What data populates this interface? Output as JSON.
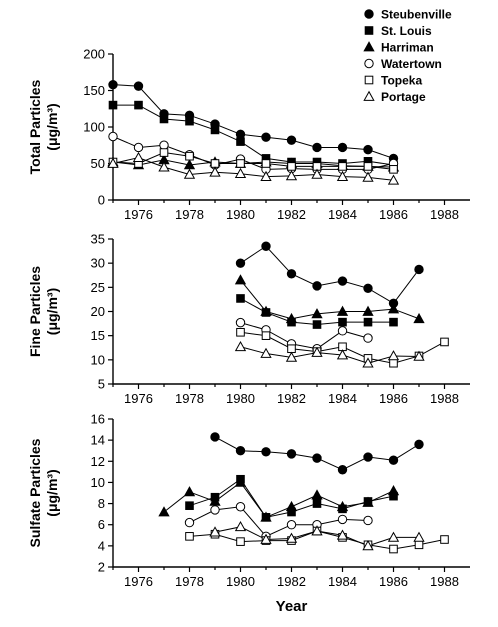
{
  "chart_data": [
    {
      "type": "line",
      "ylabel_lines": [
        "Total Particles",
        "(μg/m³)"
      ],
      "xlim": [
        1975,
        1989
      ],
      "ylim": [
        0,
        200
      ],
      "yticks": [
        0,
        50,
        100,
        150,
        200
      ],
      "xticks": [
        1976,
        1978,
        1980,
        1982,
        1984,
        1986,
        1988
      ],
      "series": [
        {
          "name": "Steubenville",
          "marker": "circle-filled",
          "x": [
            1975,
            1976,
            1977,
            1978,
            1979,
            1980,
            1981,
            1982,
            1983,
            1984,
            1985,
            1986
          ],
          "y": [
            158,
            156,
            118,
            116,
            104,
            90,
            86,
            82,
            72,
            72,
            69,
            57
          ]
        },
        {
          "name": "St. Louis",
          "marker": "square-filled",
          "x": [
            1975,
            1976,
            1977,
            1978,
            1979,
            1980,
            1981,
            1982,
            1983,
            1984,
            1985,
            1986
          ],
          "y": [
            130,
            130,
            111,
            108,
            96,
            80,
            57,
            52,
            52,
            50,
            53,
            48
          ]
        },
        {
          "name": "Harriman",
          "marker": "triangle-filled",
          "x": [
            1975,
            1976,
            1977,
            1978,
            1979,
            1980,
            1981,
            1982,
            1983,
            1984,
            1985,
            1986
          ],
          "y": [
            52,
            48,
            55,
            48,
            52,
            50,
            52,
            50,
            50,
            47,
            46,
            45
          ]
        },
        {
          "name": "Watertown",
          "marker": "circle-open",
          "x": [
            1975,
            1976,
            1977,
            1978,
            1979,
            1980,
            1981,
            1982,
            1983,
            1984,
            1985,
            1986
          ],
          "y": [
            87,
            72,
            75,
            62,
            48,
            56,
            42,
            43,
            42,
            42,
            42,
            50
          ]
        },
        {
          "name": "Topeka",
          "marker": "square-open",
          "x": [
            1975,
            1976,
            1977,
            1978,
            1979,
            1980,
            1981,
            1982,
            1983,
            1984,
            1985,
            1986
          ],
          "y": [
            52,
            50,
            65,
            60,
            50,
            50,
            50,
            46,
            46,
            46,
            46,
            42
          ]
        },
        {
          "name": "Portage",
          "marker": "triangle-open",
          "x": [
            1975,
            1976,
            1977,
            1978,
            1979,
            1980,
            1981,
            1982,
            1983,
            1984,
            1985,
            1986
          ],
          "y": [
            50,
            58,
            45,
            35,
            38,
            36,
            32,
            33,
            35,
            32,
            31,
            27
          ]
        }
      ]
    },
    {
      "type": "line",
      "ylabel_lines": [
        "Fine Particles",
        "(μg/m³)"
      ],
      "xlim": [
        1975,
        1989
      ],
      "ylim": [
        5,
        35
      ],
      "yticks": [
        5,
        10,
        15,
        20,
        25,
        30,
        35
      ],
      "xticks": [
        1976,
        1978,
        1980,
        1982,
        1984,
        1986,
        1988
      ],
      "series": [
        {
          "name": "Steubenville",
          "marker": "circle-filled",
          "x": [
            1980,
            1981,
            1982,
            1983,
            1984,
            1985,
            1986,
            1987
          ],
          "y": [
            30,
            33.5,
            27.8,
            25.3,
            26.3,
            24.8,
            21.7,
            28.7
          ]
        },
        {
          "name": "St. Louis",
          "marker": "square-filled",
          "x": [
            1980,
            1981,
            1982,
            1983,
            1984,
            1985,
            1986
          ],
          "y": [
            22.7,
            19.8,
            17.8,
            17.3,
            17.8,
            17.8,
            17.8
          ]
        },
        {
          "name": "Harriman",
          "marker": "triangle-filled",
          "x": [
            1980,
            1981,
            1982,
            1983,
            1984,
            1985,
            1986,
            1987
          ],
          "y": [
            26.5,
            20,
            18.5,
            19.5,
            20,
            20,
            20.5,
            18.5
          ]
        },
        {
          "name": "Watertown",
          "marker": "circle-open",
          "x": [
            1980,
            1981,
            1982,
            1983,
            1984,
            1985
          ],
          "y": [
            17.7,
            16.2,
            13.3,
            12.3,
            16,
            14.5
          ]
        },
        {
          "name": "Topeka",
          "marker": "square-open",
          "x": [
            1980,
            1981,
            1982,
            1983,
            1984,
            1985,
            1986,
            1987,
            1988
          ],
          "y": [
            15.7,
            15,
            12.3,
            11.7,
            12.7,
            10.3,
            9.3,
            10.8,
            13.7
          ]
        },
        {
          "name": "Portage",
          "marker": "triangle-open",
          "x": [
            1980,
            1981,
            1982,
            1983,
            1984,
            1985,
            1986,
            1987
          ],
          "y": [
            12.7,
            11.3,
            10.5,
            11.5,
            11,
            9.3,
            10.8,
            10.7
          ]
        }
      ]
    },
    {
      "type": "line",
      "ylabel_lines": [
        "Sulfate Particles",
        "(μg/m³)"
      ],
      "xlabel": "Year",
      "xlim": [
        1975,
        1989
      ],
      "ylim": [
        2,
        16
      ],
      "yticks": [
        2,
        4,
        6,
        8,
        10,
        12,
        14,
        16
      ],
      "xticks": [
        1976,
        1978,
        1980,
        1982,
        1984,
        1986,
        1988
      ],
      "series": [
        {
          "name": "Steubenville",
          "marker": "circle-filled",
          "x": [
            1979,
            1980,
            1981,
            1982,
            1983,
            1984,
            1985,
            1986,
            1987
          ],
          "y": [
            14.3,
            13,
            12.9,
            12.7,
            12.3,
            11.2,
            12.4,
            12.1,
            13.6
          ]
        },
        {
          "name": "St. Louis",
          "marker": "square-filled",
          "x": [
            1978,
            1979,
            1980,
            1981,
            1982,
            1983,
            1984,
            1985,
            1986
          ],
          "y": [
            7.8,
            8.6,
            10.3,
            6.7,
            7.2,
            8,
            7.5,
            8.2,
            8.7
          ]
        },
        {
          "name": "Harriman",
          "marker": "triangle-filled",
          "x": [
            1977,
            1978,
            1979,
            1980,
            1981,
            1982,
            1983,
            1984,
            1985,
            1986
          ],
          "y": [
            7.2,
            9.1,
            8.2,
            10,
            6.7,
            7.7,
            8.8,
            7.7,
            8.1,
            9.2
          ]
        },
        {
          "name": "Watertown",
          "marker": "circle-open",
          "x": [
            1978,
            1979,
            1980,
            1981,
            1982,
            1983,
            1984,
            1985
          ],
          "y": [
            6.2,
            7.4,
            7.7,
            4.9,
            6,
            6,
            6.5,
            6.4
          ]
        },
        {
          "name": "Topeka",
          "marker": "square-open",
          "x": [
            1978,
            1979,
            1980,
            1981,
            1982,
            1983,
            1984,
            1985,
            1986,
            1987,
            1988
          ],
          "y": [
            4.9,
            5.1,
            4.4,
            4.5,
            4.5,
            5.4,
            4.8,
            4.1,
            3.7,
            4.1,
            4.6
          ]
        },
        {
          "name": "Portage",
          "marker": "triangle-open",
          "x": [
            1979,
            1980,
            1981,
            1982,
            1983,
            1984,
            1985,
            1986,
            1987
          ],
          "y": [
            5.3,
            5.8,
            4.6,
            4.7,
            5.4,
            5,
            4,
            4.8,
            4.8
          ]
        }
      ]
    }
  ],
  "legend": {
    "placement": "top-right",
    "items": [
      {
        "label": "Steubenville",
        "marker": "circle-filled"
      },
      {
        "label": "St. Louis",
        "marker": "square-filled"
      },
      {
        "label": "Harriman",
        "marker": "triangle-filled"
      },
      {
        "label": "Watertown",
        "marker": "circle-open"
      },
      {
        "label": "Topeka",
        "marker": "square-open"
      },
      {
        "label": "Portage",
        "marker": "triangle-open"
      }
    ]
  }
}
